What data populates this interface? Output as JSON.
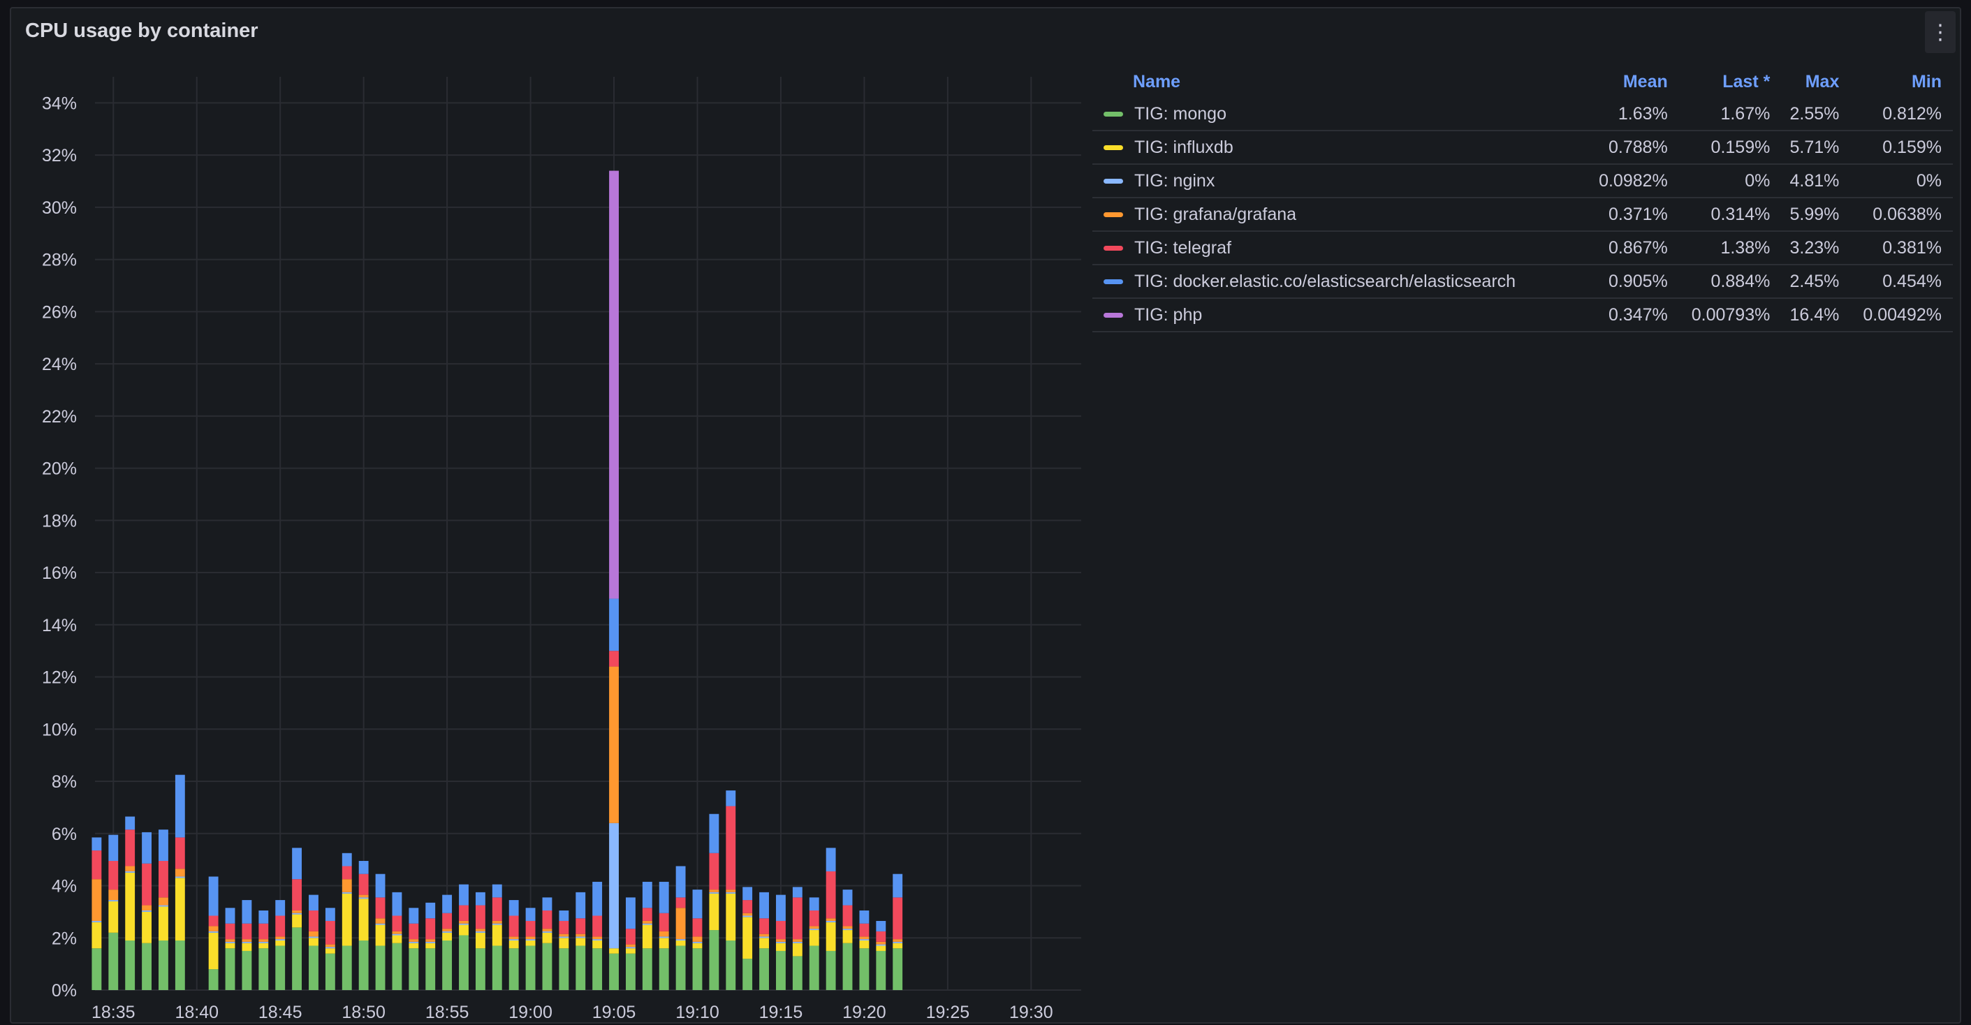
{
  "panel": {
    "title": "CPU usage by container",
    "menu_icon": "⋮"
  },
  "legend": {
    "headers": {
      "name": "Name",
      "mean": "Mean",
      "last": "Last *",
      "max": "Max",
      "min": "Min"
    },
    "rows": [
      {
        "name": "TIG: mongo",
        "color": "#73bf69",
        "mean": "1.63%",
        "last": "1.67%",
        "max": "2.55%",
        "min": "0.812%"
      },
      {
        "name": "TIG: influxdb",
        "color": "#fade2a",
        "mean": "0.788%",
        "last": "0.159%",
        "max": "5.71%",
        "min": "0.159%"
      },
      {
        "name": "TIG: nginx",
        "color": "#8ab8ff",
        "mean": "0.0982%",
        "last": "0%",
        "max": "4.81%",
        "min": "0%"
      },
      {
        "name": "TIG: grafana/grafana",
        "color": "#ff9830",
        "mean": "0.371%",
        "last": "0.314%",
        "max": "5.99%",
        "min": "0.0638%"
      },
      {
        "name": "TIG: telegraf",
        "color": "#f2495c",
        "mean": "0.867%",
        "last": "1.38%",
        "max": "3.23%",
        "min": "0.381%"
      },
      {
        "name": "TIG: docker.elastic.co/elasticsearch/elasticsearch",
        "color": "#5794f2",
        "mean": "0.905%",
        "last": "0.884%",
        "max": "2.45%",
        "min": "0.454%"
      },
      {
        "name": "TIG: php",
        "color": "#b877d9",
        "mean": "0.347%",
        "last": "0.00793%",
        "max": "16.4%",
        "min": "0.00492%"
      }
    ]
  },
  "chart_data": {
    "type": "bar",
    "stacked": true,
    "title": "CPU usage by container",
    "xlabel": "",
    "ylabel": "",
    "ylim": [
      0,
      35
    ],
    "y_ticks": [
      "0%",
      "2%",
      "4%",
      "6%",
      "8%",
      "10%",
      "12%",
      "14%",
      "16%",
      "18%",
      "20%",
      "22%",
      "24%",
      "26%",
      "28%",
      "30%",
      "32%",
      "34%"
    ],
    "y_tick_values": [
      0,
      2,
      4,
      6,
      8,
      10,
      12,
      14,
      16,
      18,
      20,
      22,
      24,
      26,
      28,
      30,
      32,
      34
    ],
    "x_ticks": [
      "18:35",
      "18:40",
      "18:45",
      "18:50",
      "18:55",
      "19:00",
      "19:05",
      "19:10",
      "19:15",
      "19:20",
      "19:25",
      "19:30"
    ],
    "x_tick_values": [
      0,
      5,
      10,
      15,
      20,
      25,
      30,
      35,
      40,
      45,
      50,
      55
    ],
    "xlim": [
      -1.1,
      58
    ],
    "x": [
      -1,
      0,
      1,
      2,
      3,
      4,
      6,
      7,
      8,
      9,
      10,
      11,
      12,
      13,
      14,
      15,
      16,
      17,
      18,
      19,
      20,
      21,
      22,
      23,
      24,
      25,
      26,
      27,
      28,
      29,
      30,
      31,
      32,
      33,
      34,
      35,
      36,
      37,
      38,
      39,
      40,
      41,
      42,
      43,
      44,
      45,
      46,
      47
    ],
    "series": [
      {
        "name": "TIG: mongo",
        "color": "#73bf69",
        "values": [
          1.6,
          2.2,
          1.9,
          1.8,
          1.9,
          1.9,
          0.8,
          1.6,
          1.5,
          1.6,
          1.7,
          2.4,
          1.7,
          1.4,
          1.7,
          1.9,
          1.7,
          1.8,
          1.6,
          1.6,
          1.9,
          2.1,
          1.6,
          1.7,
          1.6,
          1.7,
          1.8,
          1.6,
          1.7,
          1.6,
          1.4,
          1.4,
          1.6,
          1.6,
          1.7,
          1.6,
          2.3,
          1.9,
          1.2,
          1.6,
          1.5,
          1.3,
          1.7,
          1.5,
          1.8,
          1.6,
          1.5,
          1.6
        ]
      },
      {
        "name": "TIG: influxdb",
        "color": "#fade2a",
        "values": [
          1.0,
          1.2,
          2.6,
          1.2,
          1.3,
          2.4,
          1.4,
          0.2,
          0.3,
          0.2,
          0.2,
          0.5,
          0.3,
          0.2,
          2.0,
          1.6,
          0.8,
          0.3,
          0.2,
          0.2,
          0.3,
          0.4,
          0.6,
          0.8,
          0.3,
          0.2,
          0.4,
          0.4,
          0.3,
          0.3,
          0.2,
          0.2,
          0.9,
          0.4,
          0.2,
          0.2,
          1.4,
          1.8,
          1.6,
          0.4,
          0.3,
          0.5,
          0.6,
          1.1,
          0.5,
          0.3,
          0.2,
          0.2
        ]
      },
      {
        "name": "TIG: nginx",
        "color": "#8ab8ff",
        "values": [
          0.05,
          0.05,
          0.05,
          0.05,
          0.05,
          0.05,
          0.05,
          0.05,
          0.05,
          0.05,
          0.05,
          0.05,
          0.05,
          0.05,
          0.05,
          0.05,
          0.05,
          0.05,
          0.05,
          0.05,
          0.05,
          0.05,
          0.05,
          0.05,
          0.05,
          0.05,
          0.05,
          0.05,
          0.05,
          0.05,
          4.8,
          0.05,
          0.05,
          0.05,
          0.05,
          0.05,
          0.05,
          0.05,
          0.05,
          0.05,
          0.05,
          0.05,
          0.05,
          0.05,
          0.05,
          0.05,
          0.05,
          0.05
        ]
      },
      {
        "name": "TIG: grafana/grafana",
        "color": "#ff9830",
        "values": [
          1.6,
          0.4,
          0.2,
          0.2,
          0.3,
          0.3,
          0.2,
          0.1,
          0.1,
          0.1,
          0.1,
          0.1,
          0.2,
          0.1,
          0.5,
          0.1,
          0.2,
          0.1,
          0.1,
          0.1,
          0.1,
          0.1,
          0.1,
          0.1,
          0.1,
          0.1,
          0.1,
          0.1,
          0.1,
          0.1,
          6.0,
          0.1,
          0.1,
          0.2,
          1.2,
          0.2,
          0.1,
          0.1,
          0.1,
          0.1,
          0.1,
          0.1,
          0.1,
          0.1,
          0.1,
          0.1,
          0.1,
          0.1
        ]
      },
      {
        "name": "TIG: telegraf",
        "color": "#f2495c",
        "values": [
          1.1,
          1.1,
          1.4,
          1.6,
          1.4,
          1.2,
          0.4,
          0.6,
          0.6,
          0.6,
          0.8,
          1.2,
          0.8,
          0.9,
          0.5,
          0.8,
          0.8,
          0.6,
          0.6,
          0.8,
          0.6,
          0.6,
          0.9,
          0.9,
          0.8,
          0.6,
          0.7,
          0.5,
          0.6,
          0.8,
          0.6,
          0.6,
          0.5,
          0.7,
          0.4,
          0.7,
          1.4,
          3.2,
          0.5,
          0.6,
          0.7,
          1.6,
          0.6,
          1.8,
          0.8,
          0.5,
          0.4,
          1.6
        ]
      },
      {
        "name": "TIG: docker.elastic.co/elasticsearch/elasticsearch",
        "color": "#5794f2",
        "values": [
          0.5,
          1.0,
          0.5,
          1.2,
          1.2,
          2.4,
          1.5,
          0.6,
          0.9,
          0.5,
          0.6,
          1.2,
          0.6,
          0.5,
          0.5,
          0.5,
          0.9,
          0.9,
          0.6,
          0.6,
          0.7,
          0.8,
          0.5,
          0.5,
          0.6,
          0.5,
          0.5,
          0.4,
          1.0,
          1.3,
          2.0,
          1.2,
          1.0,
          1.2,
          1.2,
          1.1,
          1.5,
          0.6,
          0.5,
          1.0,
          1.0,
          0.4,
          0.5,
          0.9,
          0.6,
          0.5,
          0.4,
          0.9
        ]
      },
      {
        "name": "TIG: php",
        "color": "#b877d9",
        "values": [
          0,
          0,
          0,
          0,
          0,
          0,
          0,
          0,
          0,
          0,
          0,
          0,
          0,
          0,
          0,
          0,
          0,
          0,
          0,
          0,
          0,
          0,
          0,
          0,
          0,
          0,
          0,
          0,
          0,
          0,
          16.4,
          0,
          0,
          0,
          0,
          0,
          0,
          0,
          0,
          0,
          0,
          0,
          0,
          0,
          0,
          0,
          0,
          0
        ]
      }
    ]
  }
}
